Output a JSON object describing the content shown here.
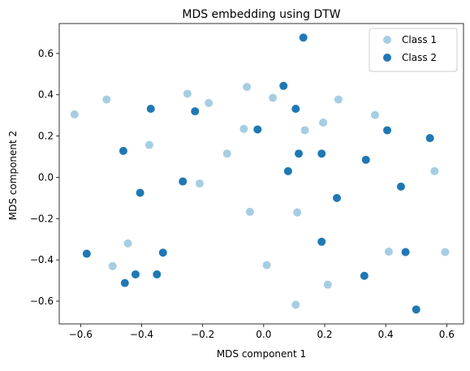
{
  "chart_data": {
    "type": "scatter",
    "title": "MDS embedding using DTW",
    "xlabel": "MDS component 1",
    "ylabel": "MDS component 2",
    "xlim": [
      -0.67,
      0.655
    ],
    "ylim": [
      -0.71,
      0.745
    ],
    "xticks": [
      -0.6,
      -0.4,
      -0.2,
      0.0,
      0.2,
      0.4,
      0.6
    ],
    "xtick_labels": [
      "−0.6",
      "−0.4",
      "−0.2",
      "0.0",
      "0.2",
      "0.4",
      "0.6"
    ],
    "yticks": [
      -0.6,
      -0.4,
      -0.2,
      0.0,
      0.2,
      0.4,
      0.6
    ],
    "ytick_labels": [
      "−0.6",
      "−0.4",
      "−0.2",
      "0.0",
      "0.2",
      "0.4",
      "0.6"
    ],
    "grid": false,
    "legend": "top-right",
    "series": [
      {
        "name": "Class 1",
        "color": "#a6cee3",
        "points": [
          [
            -0.62,
            0.305
          ],
          [
            -0.515,
            0.377
          ],
          [
            -0.25,
            0.405
          ],
          [
            -0.18,
            0.36
          ],
          [
            -0.055,
            0.438
          ],
          [
            0.03,
            0.385
          ],
          [
            0.245,
            0.377
          ],
          [
            -0.065,
            0.235
          ],
          [
            0.135,
            0.228
          ],
          [
            0.195,
            0.265
          ],
          [
            0.365,
            0.302
          ],
          [
            -0.375,
            0.157
          ],
          [
            -0.12,
            0.115
          ],
          [
            -0.21,
            -0.03
          ],
          [
            0.56,
            0.03
          ],
          [
            -0.045,
            -0.167
          ],
          [
            0.11,
            -0.17
          ],
          [
            -0.445,
            -0.32
          ],
          [
            -0.495,
            -0.43
          ],
          [
            0.01,
            -0.425
          ],
          [
            0.41,
            -0.36
          ],
          [
            0.595,
            -0.362
          ],
          [
            0.21,
            -0.52
          ],
          [
            0.105,
            -0.617
          ]
        ]
      },
      {
        "name": "Class 2",
        "color": "#1f78b4",
        "points": [
          [
            0.13,
            0.677
          ],
          [
            0.065,
            0.443
          ],
          [
            -0.37,
            0.332
          ],
          [
            0.105,
            0.332
          ],
          [
            -0.225,
            0.32
          ],
          [
            -0.02,
            0.232
          ],
          [
            0.405,
            0.228
          ],
          [
            0.545,
            0.19
          ],
          [
            -0.46,
            0.128
          ],
          [
            0.115,
            0.115
          ],
          [
            0.19,
            0.115
          ],
          [
            0.335,
            0.085
          ],
          [
            0.08,
            0.03
          ],
          [
            -0.265,
            -0.02
          ],
          [
            0.45,
            -0.045
          ],
          [
            -0.405,
            -0.075
          ],
          [
            0.24,
            -0.1
          ],
          [
            0.19,
            -0.312
          ],
          [
            -0.33,
            -0.365
          ],
          [
            0.465,
            -0.362
          ],
          [
            -0.58,
            -0.37
          ],
          [
            -0.42,
            -0.47
          ],
          [
            -0.35,
            -0.47
          ],
          [
            -0.455,
            -0.512
          ],
          [
            0.33,
            -0.477
          ],
          [
            0.5,
            -0.64
          ]
        ]
      }
    ]
  }
}
